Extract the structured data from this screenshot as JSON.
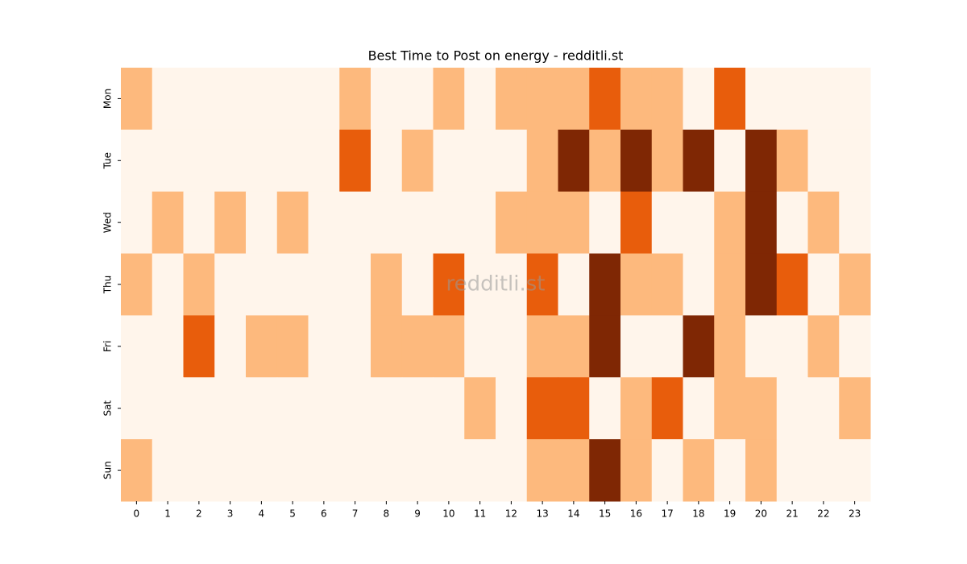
{
  "chart_data": {
    "type": "heatmap",
    "title": "Best Time to Post on energy - redditli.st",
    "watermark": "redditli.st",
    "x": [
      0,
      1,
      2,
      3,
      4,
      5,
      6,
      7,
      8,
      9,
      10,
      11,
      12,
      13,
      14,
      15,
      16,
      17,
      18,
      19,
      20,
      21,
      22,
      23
    ],
    "y": [
      "Mon",
      "Tue",
      "Wed",
      "Thu",
      "Fri",
      "Sat",
      "Sun"
    ],
    "values": [
      [
        1,
        0,
        0,
        0,
        0,
        0,
        0,
        1,
        0,
        0,
        1,
        0,
        1,
        1,
        1,
        2,
        1,
        1,
        0,
        2,
        0,
        0,
        0,
        0
      ],
      [
        0,
        0,
        0,
        0,
        0,
        0,
        0,
        2,
        0,
        1,
        0,
        0,
        0,
        1,
        3,
        1,
        3,
        1,
        3,
        0,
        3,
        1,
        0,
        0
      ],
      [
        0,
        1,
        0,
        1,
        0,
        1,
        0,
        0,
        0,
        0,
        0,
        0,
        1,
        1,
        1,
        0,
        2,
        0,
        0,
        1,
        3,
        0,
        1,
        0
      ],
      [
        1,
        0,
        1,
        0,
        0,
        0,
        0,
        0,
        1,
        0,
        2,
        0,
        0,
        2,
        0,
        3,
        1,
        1,
        0,
        1,
        3,
        2,
        0,
        1
      ],
      [
        0,
        0,
        2,
        0,
        1,
        1,
        0,
        0,
        1,
        1,
        1,
        0,
        0,
        1,
        1,
        3,
        0,
        0,
        3,
        1,
        0,
        0,
        1,
        0
      ],
      [
        0,
        0,
        0,
        0,
        0,
        0,
        0,
        0,
        0,
        0,
        0,
        1,
        0,
        2,
        2,
        0,
        1,
        2,
        0,
        1,
        1,
        0,
        0,
        1
      ],
      [
        1,
        0,
        0,
        0,
        0,
        0,
        0,
        0,
        0,
        0,
        0,
        0,
        0,
        1,
        1,
        3,
        1,
        0,
        1,
        0,
        1,
        0,
        0,
        0
      ]
    ],
    "colors": [
      "#fff5eb",
      "#fdb97d",
      "#e85d0c",
      "#7f2704"
    ]
  }
}
